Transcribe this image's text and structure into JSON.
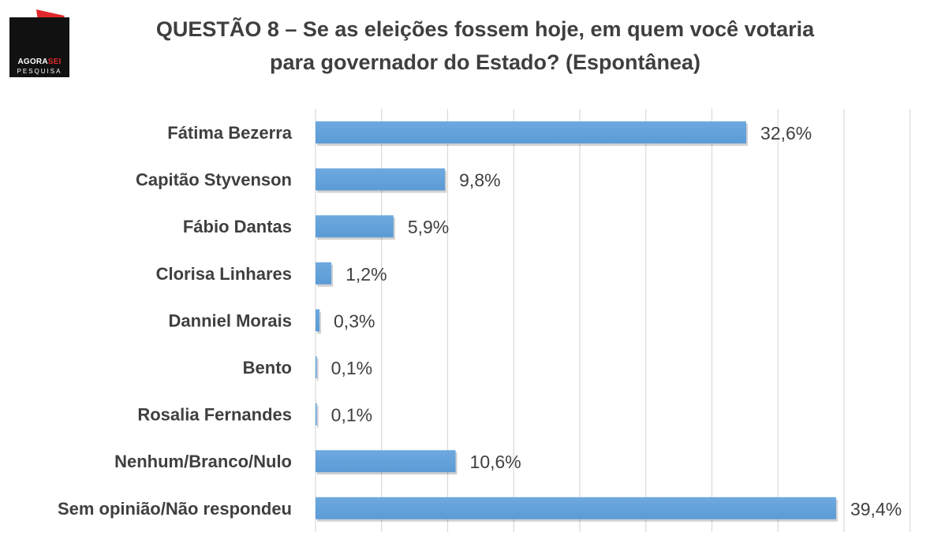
{
  "logo": {
    "brand_a": "AGORA",
    "brand_b": "SEI",
    "sub": "PESQUISA",
    "colors": {
      "background": "#111111",
      "accent": "#e0282a"
    }
  },
  "title": {
    "line1": "QUESTÃO 8 – Se as eleições fossem hoje, em quem você votaria",
    "line2": "para governador do Estado? (Espontânea)"
  },
  "chart_data": {
    "type": "bar",
    "orientation": "horizontal",
    "title": "QUESTÃO 8 – Se as eleições fossem hoje, em quem você votaria para governador do Estado? (Espontânea)",
    "categories": [
      "Fátima Bezerra",
      "Capitão Styvenson",
      "Fábio Dantas",
      "Clorisa Linhares",
      "Danniel Morais",
      "Bento",
      "Rosalia Fernandes",
      "Nenhum/Branco/Nulo",
      "Sem opinião/Não respondeu"
    ],
    "values": [
      32.6,
      9.8,
      5.9,
      1.2,
      0.3,
      0.1,
      0.1,
      10.6,
      39.4
    ],
    "data_labels": [
      "32,6%",
      "9,8%",
      "5,9%",
      "1,2%",
      "0,3%",
      "0,1%",
      "0,1%",
      "10,6%",
      "39,4%"
    ],
    "xlim": [
      0,
      45
    ],
    "grid": true,
    "bar_color": "#5b9bd5",
    "xlabel": "",
    "ylabel": ""
  }
}
